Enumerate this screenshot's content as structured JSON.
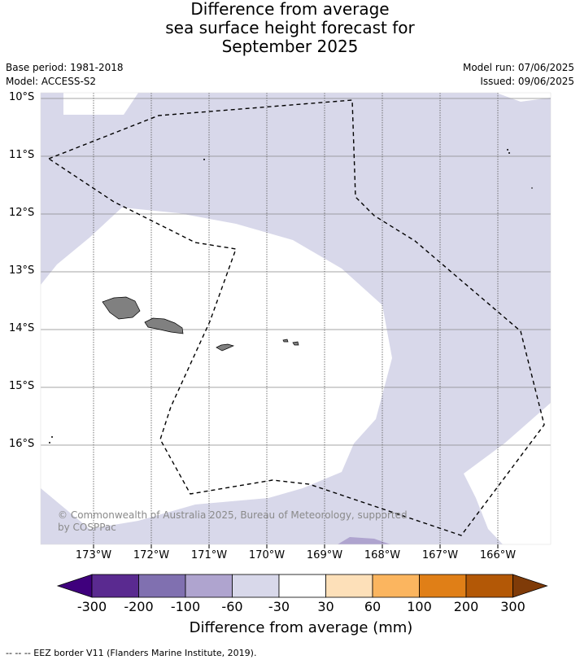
{
  "title": {
    "line1": "Difference from average",
    "line2": "sea surface height forecast for",
    "line3": "September 2025"
  },
  "meta": {
    "base_period": "Base period: 1981-2018",
    "model": "Model: ACCESS-S2",
    "model_run": "Model run: 07/06/2025",
    "issued": "Issued: 09/06/2025"
  },
  "map": {
    "lat_labels": [
      "10°S",
      "11°S",
      "12°S",
      "13°S",
      "14°S",
      "15°S",
      "16°S"
    ],
    "lon_labels": [
      "173°W",
      "172°W",
      "171°W",
      "170°W",
      "169°W",
      "168°W",
      "167°W",
      "166°W"
    ],
    "credit": "© Commonwealth of Australia 2025, Bureau of Meteorology, supported by COSPPac",
    "colors": {
      "anomaly_-60_-30": "#d8d8ea",
      "anomaly_-100_-60": "#afa4cf",
      "land": "#808080",
      "eez_border": "#000000"
    }
  },
  "colorbar": {
    "title": "Difference from average (mm)",
    "ticks": [
      "-300",
      "-200",
      "-100",
      "-60",
      "-30",
      "30",
      "60",
      "100",
      "200",
      "300"
    ],
    "colors": [
      "#3f007d",
      "#5a2a90",
      "#8070b0",
      "#afa4cf",
      "#d8d8ea",
      "#ffffff",
      "#fde0b9",
      "#fbb55f",
      "#e07f17",
      "#b35806",
      "#7f3b08"
    ]
  },
  "legend": {
    "eez": "--  --  -- EEZ border V11 (Flanders Marine Institute, 2019)."
  }
}
